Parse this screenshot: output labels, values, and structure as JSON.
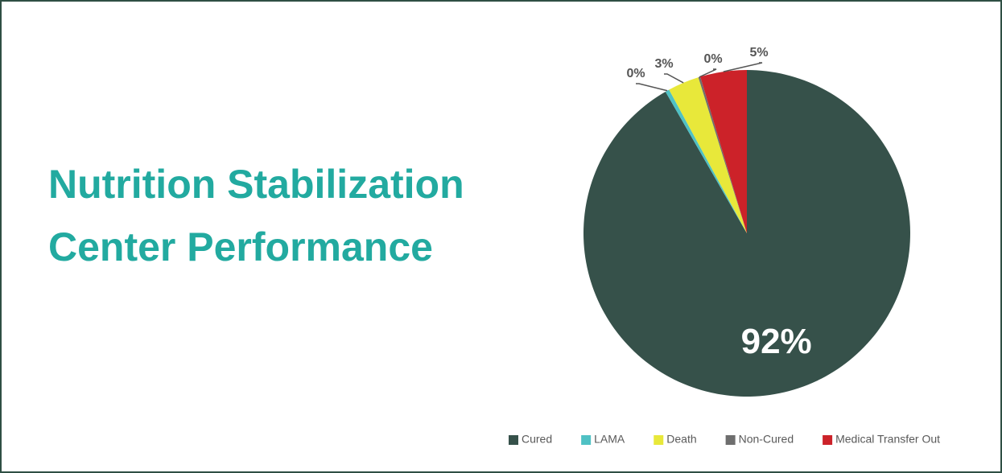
{
  "chart_data": {
    "type": "pie",
    "title": "Nutrition Stabilization Center Performance",
    "categories": [
      "Cured",
      "LAMA",
      "Death",
      "Non-Cured",
      "Medical Transfer Out"
    ],
    "values": [
      91.7,
      0.4,
      3.1,
      0.2,
      4.6
    ],
    "value_labels": [
      "92%",
      "0%",
      "3%",
      "0%",
      "5%"
    ],
    "colors": [
      "#36514a",
      "#4fc1c4",
      "#e8e83a",
      "#6e6e6e",
      "#cc2229"
    ],
    "legend": "bottom"
  }
}
